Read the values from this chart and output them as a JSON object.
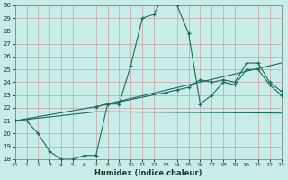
{
  "bg_color": "#c8ece8",
  "grid_color": "#b0d8d2",
  "line_color": "#1a6b60",
  "xlabel": "Humidex (Indice chaleur)",
  "xlim": [
    0,
    23
  ],
  "ylim": [
    18,
    30
  ],
  "xticks": [
    0,
    1,
    2,
    3,
    4,
    5,
    6,
    7,
    8,
    9,
    10,
    11,
    12,
    13,
    14,
    15,
    16,
    17,
    18,
    19,
    20,
    21,
    22,
    23
  ],
  "yticks": [
    18,
    19,
    20,
    21,
    22,
    23,
    24,
    25,
    26,
    27,
    28,
    29,
    30
  ],
  "main_x": [
    0,
    1,
    2,
    3,
    4,
    5,
    6,
    7,
    8,
    9,
    10,
    11,
    12,
    13,
    14,
    15,
    16,
    17,
    18,
    19,
    20,
    21,
    22,
    23
  ],
  "main_y": [
    21,
    21,
    20.0,
    18.6,
    18.0,
    18.0,
    18.3,
    18.3,
    22.3,
    22.3,
    25.3,
    29.0,
    29.3,
    31.0,
    30.0,
    27.8,
    22.3,
    23.0,
    24.0,
    23.8,
    25.0,
    25.0,
    23.8,
    23.0
  ],
  "line2_x": [
    0,
    7,
    23
  ],
  "line2_y": [
    21,
    22.1,
    25.5
  ],
  "line3_x": [
    0,
    7,
    23
  ],
  "line3_y": [
    21,
    21.7,
    21.6
  ],
  "line4_x": [
    7,
    13,
    14,
    15,
    16,
    17,
    18,
    19,
    20,
    21,
    22,
    23
  ],
  "line4_y": [
    22.1,
    23.2,
    23.4,
    23.6,
    24.2,
    24.0,
    24.2,
    24.0,
    25.5,
    25.5,
    24.0,
    23.3
  ]
}
